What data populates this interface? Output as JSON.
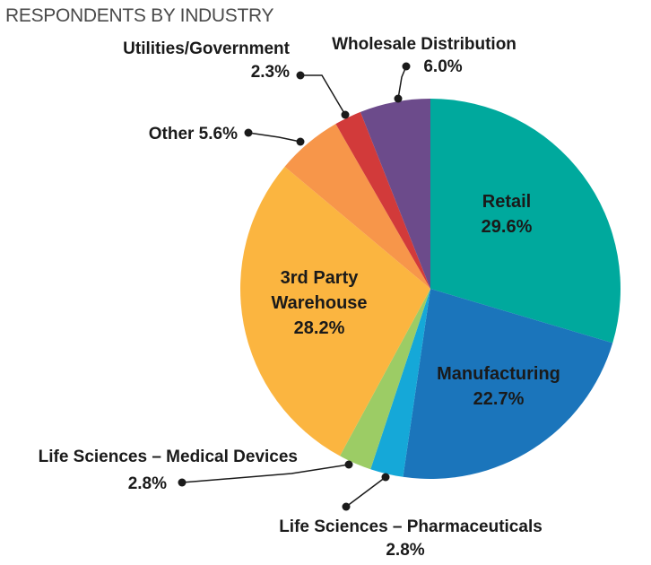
{
  "chart_data": {
    "type": "pie",
    "title": "RESPONDENTS BY INDUSTRY",
    "unit": "%",
    "slices": [
      {
        "label": "Retail",
        "value": 29.6,
        "value_label": "29.6%",
        "color": "#00a99d"
      },
      {
        "label": "Manufacturing",
        "value": 22.7,
        "value_label": "22.7%",
        "color": "#1b75bb"
      },
      {
        "label": "Life Sciences – Pharmaceuticals",
        "value": 2.8,
        "value_label": "2.8%",
        "color": "#15a8d8"
      },
      {
        "label": "Life Sciences – Medical Devices",
        "value": 2.8,
        "value_label": "2.8%",
        "color": "#9ccc65"
      },
      {
        "label": "3rd Party Warehouse",
        "value": 28.2,
        "value_label": "28.2%",
        "color": "#fbb540"
      },
      {
        "label": "Other",
        "value": 5.6,
        "value_label": "5.6%",
        "color": "#f7964a"
      },
      {
        "label": "Utilities/Government",
        "value": 2.3,
        "value_label": "2.3%",
        "color": "#d23a3a"
      },
      {
        "label": "Wholesale Distribution",
        "value": 6.0,
        "value_label": "6.0%",
        "color": "#6c4b8b"
      }
    ],
    "inside_labels": {
      "retail": [
        "Retail",
        "29.6%"
      ],
      "manufacturing": [
        "Manufacturing",
        "22.7%"
      ],
      "warehouse": [
        "3rd Party",
        "Warehouse",
        "28.2%"
      ]
    },
    "outside_labels": {
      "utilities": [
        "Utilities/Government",
        "2.3%"
      ],
      "wholesale": [
        "Wholesale Distribution",
        "6.0%"
      ],
      "other": [
        "Other 5.6%"
      ],
      "medical": [
        "Life Sciences – Medical Devices",
        "2.8%"
      ],
      "pharma": [
        "Life Sciences – Pharmaceuticals",
        "2.8%"
      ]
    }
  }
}
